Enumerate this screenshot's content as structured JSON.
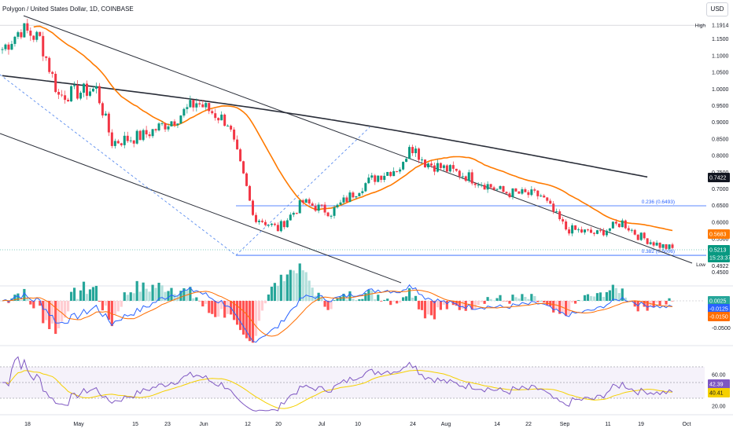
{
  "header": {
    "title": "Polygon / United States Dollar, 1D, COINBASE",
    "currency_button": "USD"
  },
  "chart_data": {
    "type": "candlestick",
    "price_axis": {
      "ticks": [
        "1.1500",
        "1.1000",
        "1.0500",
        "1.0000",
        "0.9500",
        "0.9000",
        "0.8500",
        "0.8000",
        "0.7500",
        "0.7000",
        "0.6500",
        "0.6000",
        "0.5500",
        "0.4500"
      ],
      "range": [
        0.43,
        1.22
      ]
    },
    "time_axis": {
      "labels": [
        "18",
        "May",
        "15",
        "23",
        "Jun",
        "12",
        "20",
        "Jul",
        "10",
        "24",
        "Aug",
        "14",
        "22",
        "Sep",
        "11",
        "19",
        "Oct"
      ]
    },
    "price_labels": {
      "high": {
        "text": "High",
        "value": "1.1914"
      },
      "low": {
        "text": "Low",
        "value": "0.4922"
      },
      "ma_200": {
        "value": "0.7422",
        "color": "#131722"
      },
      "ma_50": {
        "value": "0.5683",
        "color": "#ff7a00"
      },
      "current": {
        "value": "0.5213",
        "countdown": "15:23:37",
        "color": "#089981"
      }
    },
    "fibonacci": [
      {
        "label": "0.236 (0.6493)",
        "level": 0.6493
      },
      {
        "label": "0.382 (0.5006)",
        "level": 0.5006
      }
    ],
    "macd": {
      "ticks": [
        "-0.0500"
      ],
      "labels": [
        {
          "value": "0.0025",
          "color": "#26a69a"
        },
        {
          "value": "-0.0125",
          "color": "#2962ff"
        },
        {
          "value": "-0.0150",
          "color": "#ff6d00"
        }
      ]
    },
    "rsi": {
      "ticks": [
        "60.00",
        "20.00"
      ],
      "labels": [
        {
          "value": "42.39",
          "color": "#7e57c2"
        },
        {
          "value": "40.41",
          "color": "#f5d000"
        }
      ]
    },
    "series_colors": {
      "up": "#089981",
      "down": "#f23645",
      "ma50": "#ff7a00",
      "ma200": "#2a2e39"
    }
  }
}
